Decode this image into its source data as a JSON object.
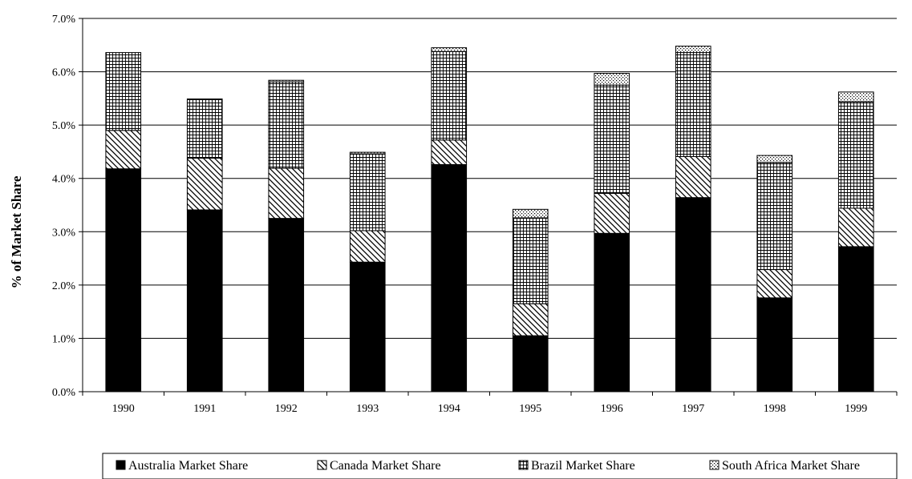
{
  "chart_data": {
    "type": "bar",
    "stacked": true,
    "categories": [
      "1990",
      "1991",
      "1992",
      "1993",
      "1994",
      "1995",
      "1996",
      "1997",
      "1998",
      "1999"
    ],
    "series": [
      {
        "name": "Australia Market Share",
        "values": [
          4.18,
          3.41,
          3.25,
          2.43,
          4.26,
          1.05,
          2.97,
          3.64,
          1.76,
          2.72
        ],
        "fill": "solid-black"
      },
      {
        "name": "Canada Market Share",
        "values": [
          0.72,
          0.97,
          0.94,
          0.59,
          0.46,
          0.6,
          0.75,
          0.77,
          0.53,
          0.72
        ],
        "fill": "diagonal-hatch"
      },
      {
        "name": "Brazil Market Share",
        "values": [
          1.46,
          1.11,
          1.62,
          1.44,
          1.66,
          1.61,
          2.03,
          1.95,
          2.01,
          2.0
        ],
        "fill": "grid-hatch"
      },
      {
        "name": "South Africa Market Share",
        "values": [
          0.0,
          0.0,
          0.03,
          0.03,
          0.07,
          0.16,
          0.22,
          0.12,
          0.13,
          0.18
        ],
        "fill": "dotted"
      }
    ],
    "ylabel": "% of Market Share",
    "xlabel": "",
    "ylim": [
      0,
      7.0
    ],
    "yticks": [
      "0.0%",
      "1.0%",
      "2.0%",
      "3.0%",
      "4.0%",
      "5.0%",
      "6.0%",
      "7.0%"
    ],
    "grid": true,
    "legend_position": "bottom"
  }
}
